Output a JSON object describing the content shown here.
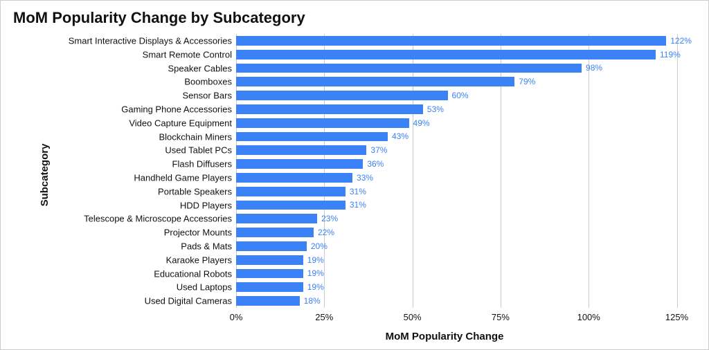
{
  "chart": {
    "type": "bar-horizontal",
    "title": "MoM Popularity Change by Subcategory",
    "title_fontsize": 22,
    "title_fontweight": 700,
    "y_axis_title": "Subcategory",
    "x_axis_title": "MoM Popularity Change",
    "axis_title_fontsize": 15,
    "axis_title_fontweight": 700,
    "category_label_fontsize": 13,
    "value_label_fontsize": 12,
    "tick_label_fontsize": 13,
    "bar_color": "#3b82f6",
    "bar_color_rgba_semi": "#3b82f6",
    "value_label_color": "#3b82f6",
    "grid_color": "#cccccc",
    "border_color": "#cccccc",
    "background_color": "#ffffff",
    "text_color": "#111111",
    "bar_height_ratio": 0.7,
    "x_min": 0,
    "x_max": 130,
    "x_ticks": [
      0,
      25,
      50,
      75,
      100,
      125
    ],
    "x_tick_suffix": "%",
    "value_suffix": "%",
    "categories": [
      "Smart Interactive Displays & Accessories",
      "Smart Remote Control",
      "Speaker Cables",
      "Boomboxes",
      "Sensor Bars",
      "Gaming Phone Accessories",
      "Video Capture Equipment",
      "Blockchain Miners",
      "Used Tablet PCs",
      "Flash Diffusers",
      "Handheld Game Players",
      "Portable Speakers",
      "HDD Players",
      "Telescope & Microscope Accessories",
      "Projector Mounts",
      "Pads & Mats",
      "Karaoke Players",
      "Educational Robots",
      "Used Laptops",
      "Used Digital Cameras"
    ],
    "values": [
      122,
      119,
      98,
      79,
      60,
      53,
      49,
      43,
      37,
      36,
      33,
      31,
      31,
      23,
      22,
      20,
      19,
      19,
      19,
      18
    ]
  }
}
